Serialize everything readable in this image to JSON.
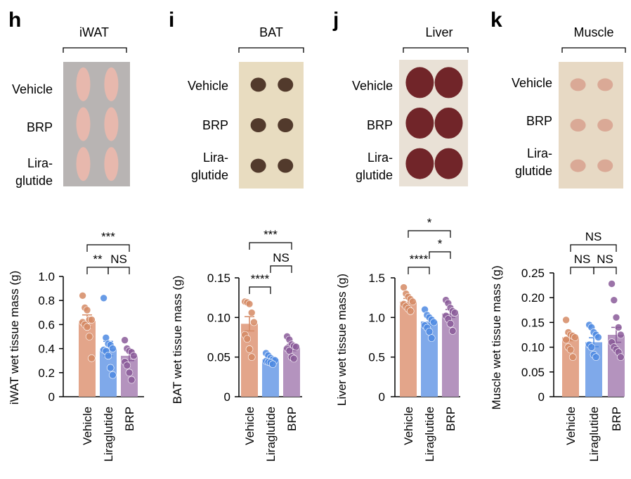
{
  "colors": {
    "vehicle": "#e3a58a",
    "liraglutide": "#7fa9ea",
    "brp": "#b493be",
    "vehicle_dot": "#d58964",
    "liraglutide_dot": "#4d8ae2",
    "brp_dot": "#8a5a99",
    "iwat_photo_bg": "#b8b4b3",
    "iwat_tissue": "#e9b8ad",
    "bat_photo_bg": "#e8dcc0",
    "bat_tissue": "#4a3024",
    "liver_photo_bg": "#e9e1d6",
    "liver_tissue": "#6a1a20",
    "muscle_photo_bg": "#e7d9c4",
    "muscle_tissue": "#d9a794"
  },
  "panels": [
    {
      "letter": "h",
      "tissue": "iWAT",
      "row_labels": [
        [
          "Vehicle"
        ],
        [
          "BRP"
        ],
        [
          "Lira-",
          "glutide"
        ]
      ],
      "photo_bg": "iwat_photo_bg",
      "tissue_color": "iwat_tissue",
      "tissue_shape": "long",
      "ylabel": "iWAT wet tissue mass (g)",
      "annotations": [
        {
          "from": 0,
          "to": 2,
          "text": "***"
        },
        {
          "from": 0,
          "to": 1,
          "text": "**"
        },
        {
          "from": 1,
          "to": 2,
          "text": "NS"
        }
      ]
    },
    {
      "letter": "i",
      "tissue": "BAT",
      "row_labels": [
        [
          "Vehicle"
        ],
        [
          "BRP"
        ],
        [
          "Lira-",
          "glutide"
        ]
      ],
      "photo_bg": "bat_photo_bg",
      "tissue_color": "bat_tissue",
      "tissue_shape": "round",
      "ylabel": "BAT wet tissue mass (g)",
      "annotations": [
        {
          "from": 0,
          "to": 2,
          "text": "***"
        },
        {
          "from": 1,
          "to": 2,
          "text": "NS"
        },
        {
          "from": 0,
          "to": 1,
          "text": "****"
        }
      ]
    },
    {
      "letter": "j",
      "tissue": "Liver",
      "row_labels": [
        [
          "Vehicle"
        ],
        [
          "BRP"
        ],
        [
          "Lira-",
          "glutide"
        ]
      ],
      "photo_bg": "liver_photo_bg",
      "tissue_color": "liver_tissue",
      "tissue_shape": "liver",
      "ylabel": "Liver wet tissue mass (g)",
      "annotations": [
        {
          "from": 0,
          "to": 2,
          "text": "*"
        },
        {
          "from": 1,
          "to": 2,
          "text": "*"
        },
        {
          "from": 0,
          "to": 1,
          "text": "****"
        }
      ]
    },
    {
      "letter": "k",
      "tissue": "Muscle",
      "row_labels": [
        [
          "Vehicle"
        ],
        [
          "BRP"
        ],
        [
          "Lira-",
          "glutide"
        ]
      ],
      "photo_bg": "muscle_photo_bg",
      "tissue_color": "muscle_tissue",
      "tissue_shape": "small",
      "ylabel": "Muscle wet tissue mass (g)",
      "annotations": [
        {
          "from": 0,
          "to": 2,
          "text": "NS"
        },
        {
          "from": 0,
          "to": 1,
          "text": "NS"
        },
        {
          "from": 1,
          "to": 2,
          "text": "NS"
        }
      ]
    }
  ],
  "chart_data": [
    {
      "type": "bar",
      "title": "iWAT",
      "ylabel": "iWAT wet tissue mass (g)",
      "categories": [
        "Vehicle",
        "Liraglutide",
        "BRP"
      ],
      "ylim": [
        0,
        1.0
      ],
      "yticks": [
        0,
        0.2,
        0.4,
        0.6,
        0.8,
        1.0
      ],
      "ytick_labels": [
        "0",
        "0.2",
        "0.4",
        "0.6",
        "0.8",
        "1.0"
      ],
      "means": [
        0.63,
        0.4,
        0.34
      ],
      "sem": [
        0.05,
        0.06,
        0.04
      ],
      "points": [
        [
          0.84,
          0.74,
          0.72,
          0.64,
          0.64,
          0.62,
          0.6,
          0.58,
          0.5,
          0.32
        ],
        [
          0.82,
          0.49,
          0.44,
          0.43,
          0.4,
          0.39,
          0.38,
          0.34,
          0.24,
          0.18
        ],
        [
          0.47,
          0.4,
          0.38,
          0.37,
          0.34,
          0.29,
          0.26,
          0.2,
          0.14
        ]
      ],
      "grid": false
    },
    {
      "type": "bar",
      "title": "BAT",
      "ylabel": "BAT wet tissue mass (g)",
      "categories": [
        "Vehicle",
        "Liraglutide",
        "BRP"
      ],
      "ylim": [
        0,
        0.15
      ],
      "yticks": [
        0,
        0.05,
        0.1,
        0.15
      ],
      "ytick_labels": [
        "0",
        "0.05",
        "0.10",
        "0.15"
      ],
      "means": [
        0.092,
        0.047,
        0.062
      ],
      "sem": [
        0.009,
        0.003,
        0.004
      ],
      "points": [
        [
          0.12,
          0.119,
          0.117,
          0.106,
          0.094,
          0.078,
          0.073,
          0.06,
          0.05
        ],
        [
          0.055,
          0.052,
          0.049,
          0.047,
          0.046,
          0.045,
          0.044,
          0.043,
          0.041
        ],
        [
          0.076,
          0.072,
          0.066,
          0.064,
          0.063,
          0.061,
          0.058,
          0.05,
          0.048
        ]
      ],
      "grid": false
    },
    {
      "type": "bar",
      "title": "Liver",
      "ylabel": "Liver wet tissue mass (g)",
      "categories": [
        "Vehicle",
        "Liraglutide",
        "BRP"
      ],
      "ylim": [
        0,
        1.5
      ],
      "yticks": [
        0,
        0.5,
        1.0,
        1.5
      ],
      "ytick_labels": [
        "0",
        "0.5",
        "1.0",
        "1.5"
      ],
      "means": [
        1.2,
        0.95,
        1.05
      ],
      "sem": [
        0.04,
        0.05,
        0.05
      ],
      "points": [
        [
          1.38,
          1.3,
          1.26,
          1.23,
          1.2,
          1.17,
          1.14,
          1.11,
          1.08
        ],
        [
          1.1,
          1.03,
          1.0,
          0.97,
          0.94,
          0.9,
          0.87,
          0.82,
          0.74
        ],
        [
          1.22,
          1.18,
          1.12,
          1.08,
          1.06,
          1.02,
          0.98,
          0.92,
          0.83
        ]
      ],
      "grid": false
    },
    {
      "type": "bar",
      "title": "Muscle",
      "ylabel": "Muscle wet tissue mass (g)",
      "categories": [
        "Vehicle",
        "Liraglutide",
        "BRP"
      ],
      "ylim": [
        0,
        0.25
      ],
      "yticks": [
        0,
        0.05,
        0.1,
        0.15,
        0.2,
        0.25
      ],
      "ytick_labels": [
        "0",
        "0.05",
        "0.10",
        "0.15",
        "0.20",
        "0.25"
      ],
      "means": [
        0.12,
        0.11,
        0.125
      ],
      "sem": [
        0.007,
        0.009,
        0.015
      ],
      "points": [
        [
          0.155,
          0.13,
          0.125,
          0.123,
          0.12,
          0.115,
          0.1,
          0.095,
          0.08
        ],
        [
          0.145,
          0.14,
          0.13,
          0.125,
          0.12,
          0.105,
          0.1,
          0.085,
          0.08
        ],
        [
          0.228,
          0.195,
          0.16,
          0.14,
          0.125,
          0.11,
          0.1,
          0.095,
          0.09,
          0.08
        ]
      ],
      "grid": false
    }
  ]
}
